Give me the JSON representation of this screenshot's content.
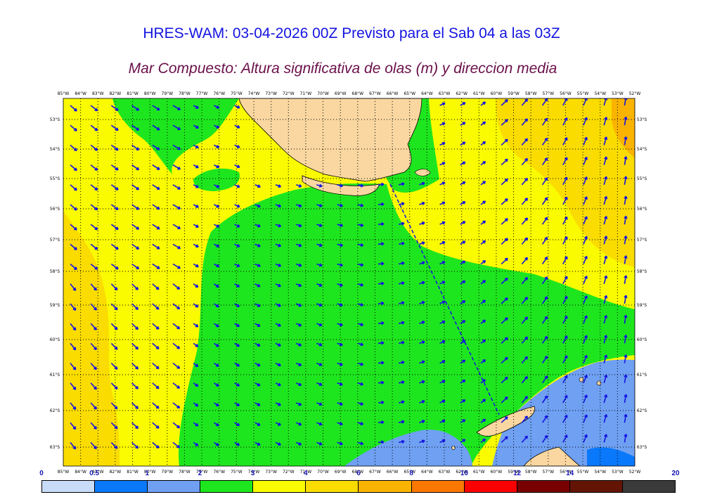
{
  "header": {
    "title": "HRES-WAM: 03-04-2026 00Z Previsto para el Sab 04 a las 03Z",
    "subtitle": "Mar Compuesto: Altura significativa de olas (m) y direccion media"
  },
  "map": {
    "lon_labels": [
      "85°W",
      "84°W",
      "83°W",
      "82°W",
      "81°W",
      "80°W",
      "79°W",
      "78°W",
      "77°W",
      "76°W",
      "75°W",
      "74°W",
      "73°W",
      "72°W",
      "71°W",
      "70°W",
      "69°W",
      "68°W",
      "67°W",
      "66°W",
      "65°W",
      "64°W",
      "63°W",
      "62°W",
      "61°W",
      "60°W",
      "59°W",
      "58°W",
      "57°W",
      "56°W",
      "55°W",
      "54°W",
      "53°W",
      "52°W"
    ],
    "lat_labels": [
      "53°S",
      "54°S",
      "55°S",
      "56°S",
      "57°S",
      "58°S",
      "59°S",
      "60°S",
      "61°S",
      "62°S",
      "63°S"
    ],
    "colors": {
      "ocean_low": "#6fa0f2",
      "wave_2_3": "#1ee61e",
      "wave_3_4": "#fafa00",
      "wave_4_6": "#fadc00",
      "wave_6_8": "#fab400",
      "land": "#fad7a0",
      "arrow": "#1414e0"
    },
    "arrow_direction_description": "mean wave direction arrows"
  },
  "legend": {
    "labels": [
      "0",
      "0.5",
      "1",
      "2",
      "3",
      "4",
      "6",
      "8",
      "10",
      "12",
      "14",
      "20"
    ],
    "colors": [
      "#c8dcf8",
      "#0a78fa",
      "#6fa0f2",
      "#1ee61e",
      "#fafa00",
      "#fadc00",
      "#fab400",
      "#fa7800",
      "#fa0000",
      "#780000",
      "#641405",
      "#3a3a3a"
    ]
  }
}
